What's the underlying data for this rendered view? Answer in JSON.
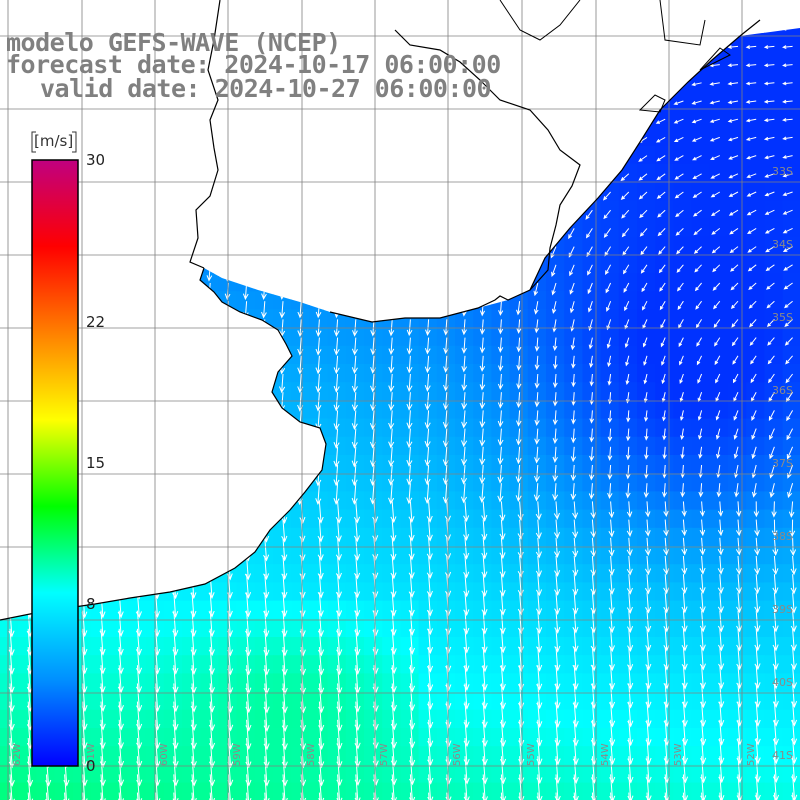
{
  "title": {
    "line1": "modelo GEFS-WAVE (NCEP)",
    "line2": "forecast date: 2024-10-17 06:00:00",
    "line3": "valid date: 2024-10-27 06:00:00"
  },
  "colorbar": {
    "unit": "[m/s]",
    "min": 0,
    "max": 30,
    "ticks": [
      "0",
      "8",
      "15",
      "22",
      "30"
    ],
    "colors": [
      "#0000ff",
      "#0090ff",
      "#00ffff",
      "#00ff00",
      "#ffff00",
      "#ff8000",
      "#ff0000",
      "#c00080"
    ]
  },
  "map": {
    "lat_labels": [
      "33S",
      "34S",
      "35S",
      "36S",
      "37S",
      "38S",
      "39S",
      "40S",
      "41S"
    ],
    "lon_labels": [
      "62W",
      "61W",
      "60W",
      "59W",
      "58W",
      "57W",
      "56W",
      "55W",
      "54W",
      "53W",
      "52W"
    ],
    "field": "surface wind speed with direction arrows",
    "land_color": "#ffffff",
    "coast_color": "#000000",
    "grid_color": "#808080"
  }
}
